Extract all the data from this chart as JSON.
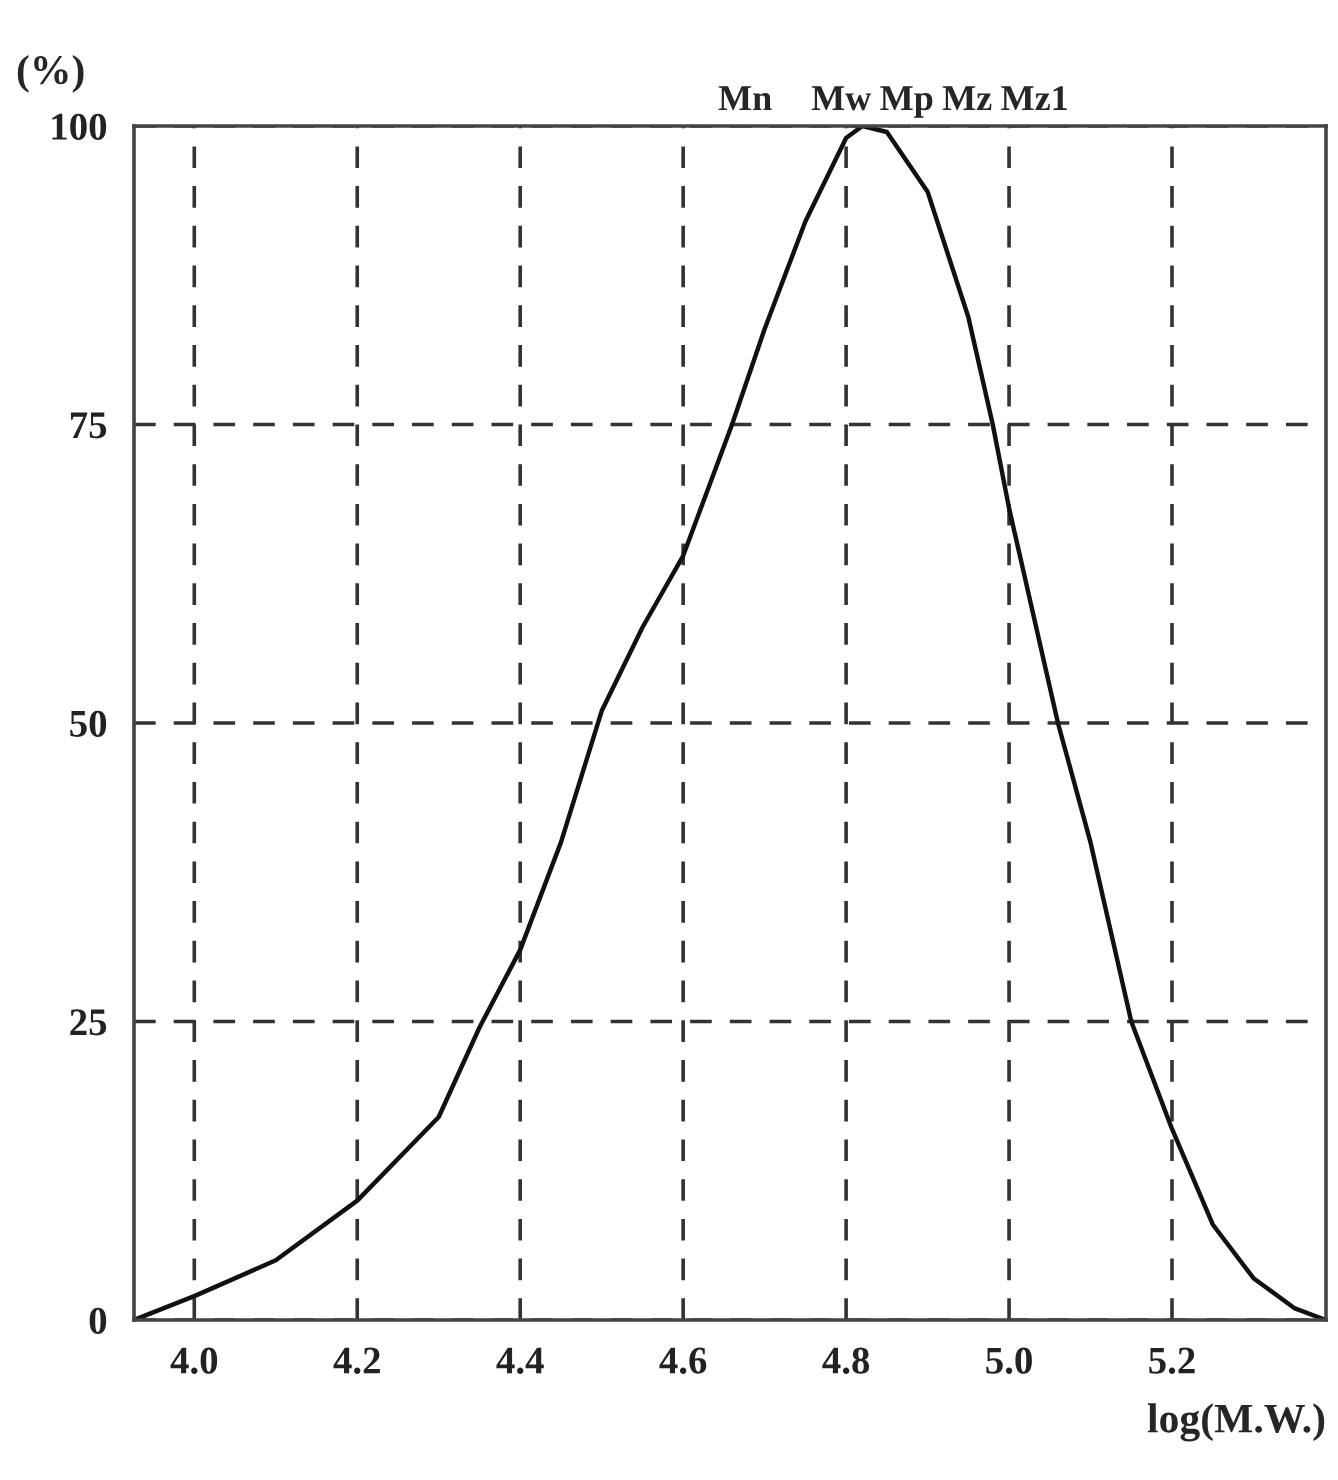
{
  "chart_data": {
    "type": "line",
    "xlabel": "log(M.W.)",
    "ylabel": "(%)",
    "xlim": [
      3.926,
      5.389
    ],
    "xticks": [
      {
        "value": 4.0,
        "label": "4.0"
      },
      {
        "value": 4.2,
        "label": "4.2"
      },
      {
        "value": 4.4,
        "label": "4.4"
      },
      {
        "value": 4.6,
        "label": "4.6"
      },
      {
        "value": 4.8,
        "label": "4.8"
      },
      {
        "value": 5.0,
        "label": "5.0"
      },
      {
        "value": 5.2,
        "label": "5.2"
      }
    ],
    "ylim": [
      0,
      100
    ],
    "yticks": [
      0,
      25,
      50,
      75,
      100
    ],
    "grid": true,
    "legend": false,
    "marker": "none",
    "line_style": "solid",
    "series": [
      {
        "color": "#111111",
        "x": [
          3.926,
          4.0,
          4.1,
          4.2,
          4.3,
          4.35,
          4.4,
          4.45,
          4.5,
          4.55,
          4.6,
          4.66,
          4.7,
          4.75,
          4.8,
          4.82,
          4.85,
          4.9,
          4.95,
          4.98,
          5.0,
          5.06,
          5.1,
          5.15,
          5.2,
          5.25,
          5.3,
          5.35,
          5.389
        ],
        "values": [
          0,
          2,
          5,
          10,
          17,
          24.5,
          31,
          40,
          51,
          58,
          64,
          75,
          83,
          92,
          99,
          100,
          99.5,
          94.5,
          84,
          75,
          68,
          50,
          40,
          25,
          16,
          8,
          3.5,
          1,
          0
        ]
      }
    ],
    "annotations": [
      "Mn",
      "Mw",
      "Mp",
      "Mz",
      "Mz1"
    ]
  }
}
